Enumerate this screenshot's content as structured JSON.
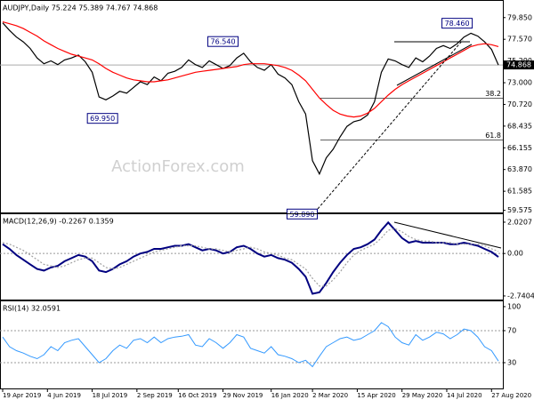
{
  "chart_data": [
    {
      "type": "line",
      "title": "AUDJPY,Daily  75.224 75.389 74.767 74.868",
      "watermark": "ActionForex.com",
      "xlim": [
        0,
        72
      ],
      "ylim": [
        59.26,
        81.42
      ],
      "yticks": [
        {
          "value": 79.85,
          "label": "79.850"
        },
        {
          "value": 77.57,
          "label": "77.570"
        },
        {
          "value": 75.29,
          "label": "75.290"
        },
        {
          "value": 73.0,
          "label": "73.000"
        },
        {
          "value": 70.72,
          "label": "70.720"
        },
        68.435,
        66.155,
        {
          "value": 63.87,
          "label": "63.870"
        },
        61.585,
        59.575
      ],
      "last": {
        "value": 74.868,
        "label": "74.868"
      },
      "series": [
        {
          "name": "AUDJPY",
          "color": "#000000",
          "values": [
            79.3,
            78.5,
            77.8,
            77.3,
            76.6,
            75.6,
            75.0,
            75.3,
            74.9,
            75.4,
            75.6,
            75.9,
            75.2,
            74.1,
            71.5,
            71.2,
            71.6,
            72.1,
            71.9,
            72.5,
            73.1,
            72.8,
            73.6,
            73.2,
            74.0,
            74.2,
            74.6,
            75.4,
            74.9,
            74.6,
            75.3,
            74.9,
            74.5,
            74.8,
            75.6,
            76.1,
            75.2,
            74.6,
            74.3,
            74.9,
            73.9,
            73.5,
            72.8,
            71.0,
            69.7,
            64.8,
            63.4,
            65.1,
            66.0,
            67.3,
            68.4,
            68.9,
            69.1,
            69.6,
            71.0,
            74.1,
            75.5,
            75.3,
            74.9,
            74.6,
            75.6,
            75.2,
            75.8,
            76.6,
            76.9,
            76.6,
            77.1,
            77.8,
            78.2,
            77.9,
            77.3,
            76.5,
            74.868
          ]
        },
        {
          "name": "MA",
          "color": "#ff0000",
          "values": [
            79.4,
            79.2,
            79.0,
            78.7,
            78.3,
            77.9,
            77.4,
            77.0,
            76.6,
            76.3,
            76.0,
            75.8,
            75.6,
            75.4,
            75.0,
            74.5,
            74.1,
            73.8,
            73.5,
            73.3,
            73.2,
            73.1,
            73.1,
            73.2,
            73.3,
            73.5,
            73.7,
            73.9,
            74.1,
            74.2,
            74.3,
            74.4,
            74.5,
            74.6,
            74.7,
            74.9,
            75.0,
            75.0,
            75.0,
            74.9,
            74.8,
            74.6,
            74.3,
            73.8,
            73.2,
            72.3,
            71.4,
            70.7,
            70.1,
            69.7,
            69.5,
            69.4,
            69.5,
            69.8,
            70.3,
            71.0,
            71.7,
            72.3,
            72.8,
            73.2,
            73.6,
            74.0,
            74.4,
            74.8,
            75.2,
            75.6,
            76.0,
            76.4,
            76.8,
            77.0,
            77.1,
            77.0,
            76.8
          ]
        }
      ],
      "annotations": [
        {
          "label": "78.460",
          "value": 78.46,
          "x": 66,
          "side": "above"
        },
        {
          "label": "76.540",
          "value": 76.54,
          "x": 32,
          "side": "above"
        },
        {
          "label": "69.950",
          "value": 69.95,
          "x": 14.5,
          "side": "below"
        },
        {
          "label": "59.890",
          "value": 59.89,
          "x": 43.5,
          "side": "below"
        }
      ],
      "levels": [
        {
          "label": "38.2",
          "value": 71.37
        },
        {
          "label": "61.8",
          "value": 66.98
        }
      ]
    },
    {
      "type": "line",
      "title": "MACD(12,26,9) -0.2267 0.1359",
      "xlim": [
        0,
        72
      ],
      "ylim": [
        -3.03,
        2.42
      ],
      "yticks": [
        2.0207,
        {
          "value": 0,
          "label": "0.00"
        },
        -2.7404
      ],
      "series": [
        {
          "name": "MACD",
          "color": "#000080",
          "values": [
            0.6,
            0.3,
            -0.1,
            -0.4,
            -0.7,
            -1.0,
            -1.1,
            -0.9,
            -0.8,
            -0.5,
            -0.3,
            -0.1,
            -0.2,
            -0.5,
            -1.1,
            -1.2,
            -1.0,
            -0.7,
            -0.5,
            -0.2,
            0.0,
            0.1,
            0.3,
            0.3,
            0.4,
            0.5,
            0.5,
            0.6,
            0.4,
            0.2,
            0.3,
            0.2,
            0.0,
            0.1,
            0.4,
            0.5,
            0.3,
            0.0,
            -0.2,
            -0.1,
            -0.3,
            -0.4,
            -0.6,
            -1.0,
            -1.5,
            -2.6,
            -2.5,
            -1.9,
            -1.2,
            -0.6,
            -0.1,
            0.3,
            0.4,
            0.6,
            0.9,
            1.5,
            2.0,
            1.5,
            1.0,
            0.7,
            0.8,
            0.7,
            0.7,
            0.7,
            0.7,
            0.6,
            0.6,
            0.7,
            0.6,
            0.5,
            0.3,
            0.1,
            -0.2267
          ]
        },
        {
          "name": "Signal",
          "color": "#a0a0a0",
          "style": "dotted",
          "values": [
            0.7,
            0.6,
            0.4,
            0.2,
            -0.1,
            -0.4,
            -0.7,
            -0.8,
            -0.9,
            -0.8,
            -0.6,
            -0.4,
            -0.3,
            -0.3,
            -0.6,
            -0.9,
            -1.0,
            -0.9,
            -0.7,
            -0.5,
            -0.3,
            -0.1,
            0.1,
            0.2,
            0.3,
            0.4,
            0.5,
            0.5,
            0.5,
            0.4,
            0.3,
            0.3,
            0.2,
            0.1,
            0.2,
            0.3,
            0.4,
            0.3,
            0.1,
            0.0,
            -0.1,
            -0.3,
            -0.4,
            -0.7,
            -1.0,
            -1.6,
            -2.1,
            -2.1,
            -1.7,
            -1.2,
            -0.6,
            -0.1,
            0.2,
            0.4,
            0.6,
            1.0,
            1.5,
            1.6,
            1.4,
            1.1,
            0.9,
            0.8,
            0.8,
            0.7,
            0.7,
            0.7,
            0.6,
            0.6,
            0.6,
            0.6,
            0.5,
            0.3,
            0.1359
          ]
        }
      ]
    },
    {
      "type": "line",
      "title": "RSI(14) 32.0591",
      "xlim": [
        0,
        72
      ],
      "ylim": [
        -3.3,
        104.4
      ],
      "yticks": [
        100,
        70,
        30
      ],
      "xticks": [
        {
          "value": 0,
          "label": "19 Apr 2019"
        },
        {
          "value": 6.5,
          "label": "4 Jun 2019"
        },
        {
          "value": 13,
          "label": "18 Jul 2019"
        },
        {
          "value": 19.5,
          "label": "2 Sep 2019"
        },
        {
          "value": 25.5,
          "label": "16 Oct 2019"
        },
        {
          "value": 32,
          "label": "29 Nov 2019"
        },
        {
          "value": 39,
          "label": "16 Jan 2020"
        },
        {
          "value": 45,
          "label": "2 Mar 2020"
        },
        {
          "value": 51.5,
          "label": "15 Apr 2020"
        },
        {
          "value": 58,
          "label": "29 May 2020"
        },
        {
          "value": 64.5,
          "label": "14 Jul 2020"
        },
        {
          "value": 71,
          "label": "27 Aug 2020"
        }
      ],
      "series": [
        {
          "name": "RSI",
          "color": "#3399ff",
          "values": [
            62,
            50,
            45,
            42,
            38,
            35,
            40,
            50,
            45,
            55,
            58,
            60,
            50,
            40,
            30,
            35,
            45,
            52,
            48,
            58,
            60,
            55,
            62,
            55,
            60,
            62,
            63,
            65,
            52,
            50,
            60,
            55,
            48,
            55,
            65,
            62,
            48,
            45,
            42,
            50,
            40,
            38,
            35,
            30,
            33,
            25,
            38,
            50,
            55,
            60,
            62,
            58,
            60,
            65,
            70,
            80,
            75,
            62,
            55,
            52,
            65,
            58,
            62,
            68,
            66,
            60,
            65,
            72,
            70,
            62,
            50,
            45,
            32.0591
          ]
        }
      ]
    }
  ]
}
